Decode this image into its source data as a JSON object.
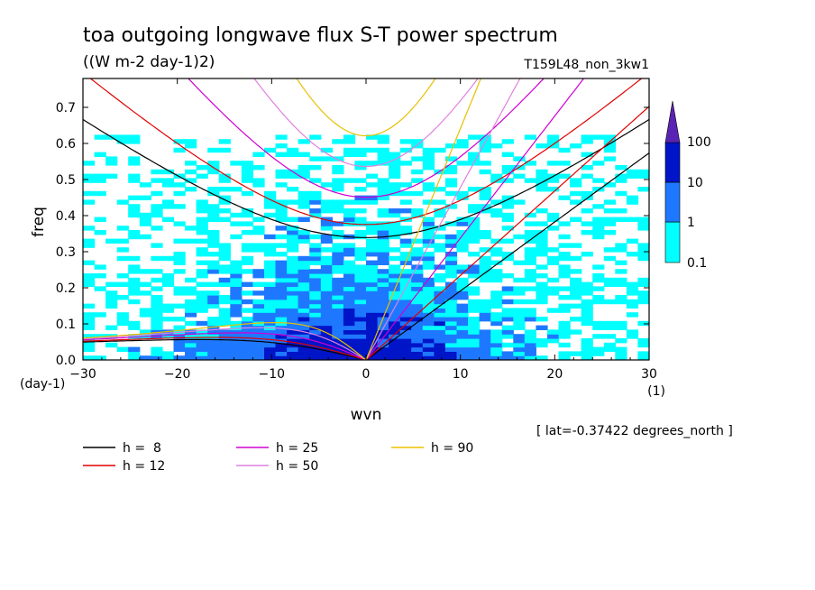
{
  "chart_data": {
    "type": "heatmap",
    "title": "toa outgoing longwave flux S-T power spectrum",
    "units": "((W m-2 day-1)2)",
    "run_label": "T159L48_non_3kw1",
    "xlabel": "wvn",
    "ylabel": "freq",
    "x_unit": "(1)",
    "y_unit": "(day-1)",
    "footnote": "[ lat=-0.37422 degrees_north ]",
    "xlim": [
      -30,
      30
    ],
    "ylim": [
      0,
      0.78
    ],
    "x_ticks": [
      "-30",
      "-20",
      "-10",
      "0",
      "10",
      "20",
      "30"
    ],
    "y_ticks": [
      "0.0",
      "0.1",
      "0.2",
      "0.3",
      "0.4",
      "0.5",
      "0.6",
      "0.7"
    ],
    "colorbar": {
      "levels": [
        "0.1",
        "1",
        "10",
        "100"
      ],
      "colors": [
        "#00ffff",
        "#1e78ff",
        "#0014c8",
        "#5a23b4"
      ]
    },
    "dispersion_curves": [
      {
        "label": "h =  8",
        "h": 8,
        "color": "#000000"
      },
      {
        "label": "h = 12",
        "h": 12,
        "color": "#e00000"
      },
      {
        "label": "h = 25",
        "h": 25,
        "color": "#d000d0"
      },
      {
        "label": "h = 50",
        "h": 50,
        "color": "#e080e0"
      },
      {
        "label": "h = 90",
        "h": 90,
        "color": "#e8c000"
      }
    ],
    "power_regions": [
      {
        "level": "0.1-1",
        "wvn_range": [
          -30,
          30
        ],
        "freq_range": [
          0,
          0.6
        ],
        "note": "broad patchy background"
      },
      {
        "level": "1-10",
        "wvn_range": [
          -17,
          16
        ],
        "freq_range": [
          0,
          0.42
        ],
        "note": "centred near wvn 0, low freq"
      },
      {
        "level": "10-100",
        "wvn_range": [
          -9,
          5
        ],
        "freq_range": [
          0,
          0.18
        ],
        "note": "core near wvn -2..2, freq < 0.1"
      }
    ]
  }
}
